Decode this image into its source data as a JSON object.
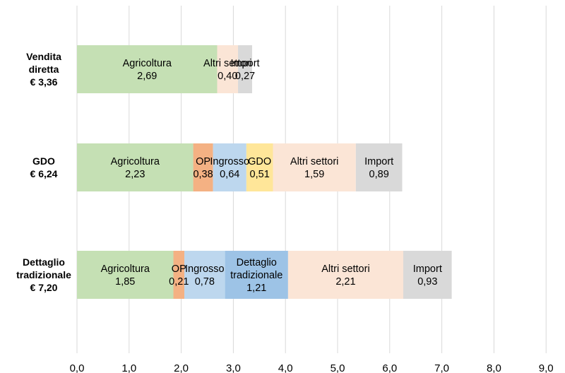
{
  "chart_data": {
    "type": "bar",
    "orientation": "horizontal",
    "stacked": true,
    "xlim": [
      0,
      9
    ],
    "x_ticks": [
      "0,0",
      "1,0",
      "2,0",
      "3,0",
      "4,0",
      "5,0",
      "6,0",
      "7,0",
      "8,0",
      "9,0"
    ],
    "grid": "vertical",
    "legend": "none",
    "colors": {
      "Agricoltura": "#c5e0b4",
      "OP": "#f4b183",
      "Ingrosso": "#bdd7ee",
      "GDO": "#ffe699",
      "Dettaglio tradizionale": "#9dc3e6",
      "Altri settori": "#fbe5d6",
      "Import": "#d9d9d9"
    },
    "categories": [
      {
        "label_lines": [
          "Vendita",
          "diretta",
          "€ 3,36"
        ],
        "total": 3.36,
        "segments": [
          {
            "name": "Agricoltura",
            "name_lines": [
              "Agricoltura"
            ],
            "value": 2.69,
            "value_label": "2,69"
          },
          {
            "name": "Altri settori",
            "name_lines": [
              "Altri settori"
            ],
            "value": 0.4,
            "value_label": "0,40"
          },
          {
            "name": "Import",
            "name_lines": [
              "Import"
            ],
            "value": 0.27,
            "value_label": "0,27"
          }
        ]
      },
      {
        "label_lines": [
          "GDO",
          "€ 6,24"
        ],
        "total": 6.24,
        "segments": [
          {
            "name": "Agricoltura",
            "name_lines": [
              "Agricoltura"
            ],
            "value": 2.23,
            "value_label": "2,23"
          },
          {
            "name": "OP",
            "name_lines": [
              "OP"
            ],
            "value": 0.38,
            "value_label": "0,38"
          },
          {
            "name": "Ingrosso",
            "name_lines": [
              "Ingrosso"
            ],
            "value": 0.64,
            "value_label": "0,64"
          },
          {
            "name": "GDO",
            "name_lines": [
              "GDO"
            ],
            "value": 0.51,
            "value_label": "0,51"
          },
          {
            "name": "Altri settori",
            "name_lines": [
              "Altri settori"
            ],
            "value": 1.59,
            "value_label": "1,59"
          },
          {
            "name": "Import",
            "name_lines": [
              "Import"
            ],
            "value": 0.89,
            "value_label": "0,89"
          }
        ]
      },
      {
        "label_lines": [
          "Dettaglio",
          "tradizionale",
          "€ 7,20"
        ],
        "total": 7.2,
        "segments": [
          {
            "name": "Agricoltura",
            "name_lines": [
              "Agricoltura"
            ],
            "value": 1.85,
            "value_label": "1,85"
          },
          {
            "name": "OP",
            "name_lines": [
              "OP"
            ],
            "value": 0.21,
            "value_label": "0,21"
          },
          {
            "name": "Ingrosso",
            "name_lines": [
              "Ingrosso"
            ],
            "value": 0.78,
            "value_label": "0,78"
          },
          {
            "name": "Dettaglio tradizionale",
            "name_lines": [
              "Dettaglio",
              "tradizionale"
            ],
            "value": 1.21,
            "value_label": "1,21"
          },
          {
            "name": "Altri settori",
            "name_lines": [
              "Altri settori"
            ],
            "value": 2.21,
            "value_label": "2,21"
          },
          {
            "name": "Import",
            "name_lines": [
              "Import"
            ],
            "value": 0.93,
            "value_label": "0,93"
          }
        ]
      }
    ]
  }
}
